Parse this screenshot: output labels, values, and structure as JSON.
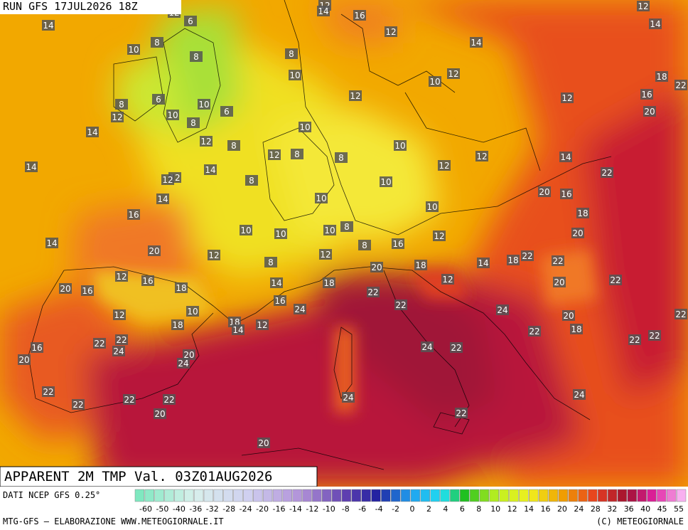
{
  "header": {
    "run": "RUN GFS 17JUL2026 18Z",
    "field": "APPARENT 2M TMP Val. 03Z01AUG2026"
  },
  "footer": {
    "source": "DATI NCEP GFS 0.25°",
    "credit": "MTG-GFS — ELABORAZIONE WWW.METEOGIORNALE.IT",
    "copyright": "(C) METEOGIORNALE"
  },
  "scale_labels": [
    -60,
    -50,
    -40,
    -36,
    -32,
    -28,
    -24,
    -20,
    -16,
    -14,
    -12,
    -10,
    -8,
    -6,
    -4,
    -2,
    0,
    2,
    4,
    6,
    8,
    10,
    12,
    14,
    16,
    20,
    24,
    28,
    32,
    36,
    40,
    45,
    55
  ],
  "map_labels": [
    12,
    6,
    14,
    12,
    14,
    16,
    12,
    14,
    12,
    10,
    8,
    8,
    8,
    14,
    10,
    12,
    10,
    18,
    22,
    16,
    6,
    8,
    10,
    6,
    10,
    12,
    8,
    20,
    12,
    12,
    14,
    10,
    12,
    8,
    10,
    12,
    8,
    8,
    12,
    14,
    12,
    14,
    14,
    12,
    12,
    8,
    10,
    22,
    14,
    10,
    20,
    16,
    16,
    10,
    18,
    10,
    10,
    10,
    8,
    8,
    14,
    12,
    20,
    20,
    12,
    12,
    16,
    8,
    22,
    22,
    18,
    14,
    18,
    20,
    12,
    14,
    18,
    16,
    18,
    20,
    16,
    22,
    20,
    12,
    22,
    16,
    24,
    24,
    22,
    10,
    12,
    20,
    22,
    12,
    18,
    14,
    18,
    22,
    18,
    22,
    22,
    24,
    22,
    22,
    16,
    20,
    24,
    24,
    22,
    20,
    22,
    22,
    22,
    24,
    24,
    22,
    20,
    22,
    20
  ]
}
